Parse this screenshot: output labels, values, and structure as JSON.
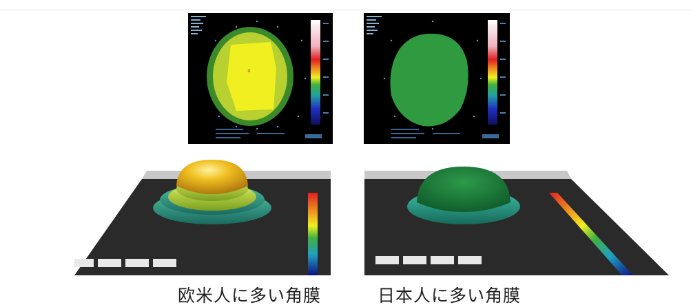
{
  "figure": {
    "left_panel": {
      "caption": "欧米人に多い角膜",
      "topography_colors": [
        "#3a8a2a",
        "#b8d030",
        "#f0f020"
      ],
      "surface_colors": [
        "#2a9a8a",
        "#b8d040",
        "#f0c020"
      ]
    },
    "right_panel": {
      "caption": "日本人に多い角膜",
      "topography_colors": [
        "#2f9a40"
      ],
      "surface_colors": [
        "#1f7a3a",
        "#2a9a8a"
      ]
    },
    "color_scale_icon": "color-scale-bar-icon"
  }
}
